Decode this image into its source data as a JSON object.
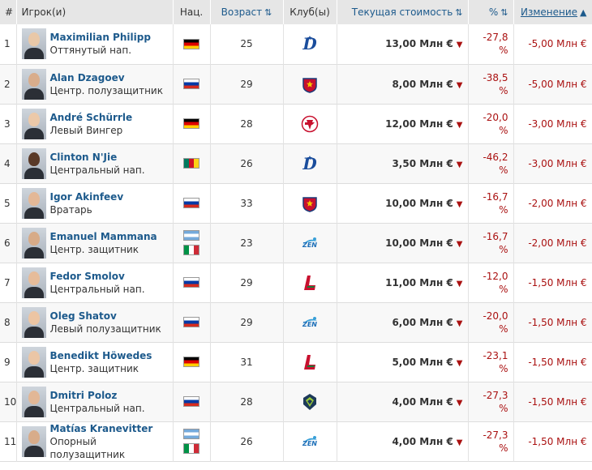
{
  "header": {
    "num": "#",
    "player": "Игрок(и)",
    "nat": "Нац.",
    "age": "Возраст",
    "club": "Клуб(ы)",
    "value": "Текущая стоимость",
    "pct": "%",
    "change": "Изменение",
    "sort_icon": "⇅",
    "sort_active_icon": "▲"
  },
  "rows": [
    {
      "n": "1",
      "name": "Maximilian Philipp",
      "pos": "Оттянутый нап.",
      "flags": [
        "de"
      ],
      "age": "25",
      "club": "dynamo",
      "value": "13,00 Млн €",
      "pct1": "-27,8",
      "pct2": "%",
      "change": "-5,00 Млн €",
      "skin": "#e9c8a8"
    },
    {
      "n": "2",
      "name": "Alan Dzagoev",
      "pos": "Центр. полузащитник",
      "flags": [
        "ru"
      ],
      "age": "29",
      "club": "cska",
      "value": "8,00 Млн €",
      "pct1": "-38,5",
      "pct2": "%",
      "change": "-5,00 Млн €",
      "skin": "#d9ad8c"
    },
    {
      "n": "3",
      "name": "André Schürrle",
      "pos": "Левый Вингер",
      "flags": [
        "de"
      ],
      "age": "28",
      "club": "spartak",
      "value": "12,00 Млн €",
      "pct1": "-20,0",
      "pct2": "%",
      "change": "-3,00 Млн €",
      "skin": "#ecc9a9"
    },
    {
      "n": "4",
      "name": "Clinton N'Jie",
      "pos": "Центральный нап.",
      "flags": [
        "cm"
      ],
      "age": "26",
      "club": "dynamo",
      "value": "3,50 Млн €",
      "pct1": "-46,2",
      "pct2": "%",
      "change": "-3,00 Млн €",
      "skin": "#5a3a28"
    },
    {
      "n": "5",
      "name": "Igor Akinfeev",
      "pos": "Вратарь",
      "flags": [
        "ru"
      ],
      "age": "33",
      "club": "cska",
      "value": "10,00 Млн €",
      "pct1": "-16,7",
      "pct2": "%",
      "change": "-2,00 Млн €",
      "skin": "#e3b897"
    },
    {
      "n": "6",
      "name": "Emanuel Mammana",
      "pos": "Центр. защитник",
      "flags": [
        "ar",
        "it"
      ],
      "age": "23",
      "club": "zenit",
      "value": "10,00 Млн €",
      "pct1": "-16,7",
      "pct2": "%",
      "change": "-2,00 Млн €",
      "skin": "#d7ab88"
    },
    {
      "n": "7",
      "name": "Fedor Smolov",
      "pos": "Центральный нап.",
      "flags": [
        "ru"
      ],
      "age": "29",
      "club": "lokomotiv",
      "value": "11,00 Млн €",
      "pct1": "-12,0",
      "pct2": "%",
      "change": "-1,50 Млн €",
      "skin": "#e6bc9a"
    },
    {
      "n": "8",
      "name": "Oleg Shatov",
      "pos": "Левый полузащитник",
      "flags": [
        "ru"
      ],
      "age": "29",
      "club": "zenit",
      "value": "6,00 Млн €",
      "pct1": "-20,0",
      "pct2": "%",
      "change": "-1,50 Млн €",
      "skin": "#ecc5a3"
    },
    {
      "n": "9",
      "name": "Benedikt Höwedes",
      "pos": "Центр. защитник",
      "flags": [
        "de"
      ],
      "age": "31",
      "club": "lokomotiv",
      "value": "5,00 Млн €",
      "pct1": "-23,1",
      "pct2": "%",
      "change": "-1,50 Млн €",
      "skin": "#ebc6a6"
    },
    {
      "n": "10",
      "name": "Dmitri Poloz",
      "pos": "Центральный нап.",
      "flags": [
        "ru"
      ],
      "age": "28",
      "club": "rubin",
      "value": "4,00 Млн €",
      "pct1": "-27,3",
      "pct2": "%",
      "change": "-1,50 Млн €",
      "skin": "#e2b796"
    },
    {
      "n": "11",
      "name": "Matías Kranevitter",
      "pos": "Опорный полузащитник",
      "flags": [
        "ar",
        "it"
      ],
      "age": "26",
      "club": "zenit",
      "value": "4,00 Млн €",
      "pct1": "-27,3",
      "pct2": "%",
      "change": "-1,50 Млн €",
      "skin": "#d8ac8a"
    }
  ],
  "down_icon": "▼",
  "colors": {
    "link": "#1d5a8c",
    "negative": "#a11",
    "header_bg": "#e6e6e6"
  }
}
